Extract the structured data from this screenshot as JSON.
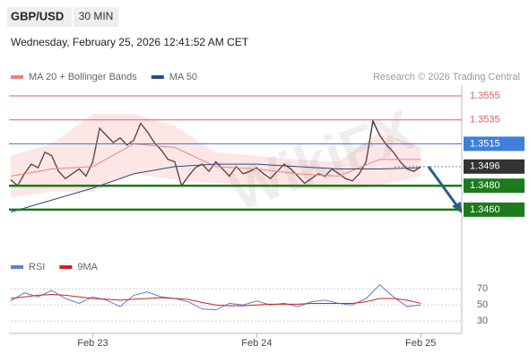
{
  "header": {
    "symbol": "GBP/USD",
    "timeframe": "30 MIN",
    "datetime": "Wednesday, February 25, 2026 12:41:52 AM CET",
    "credit": "Research © 2026 Trading Central",
    "watermark": "WikiFX"
  },
  "chart_data": [
    {
      "type": "line",
      "xlim": [
        -12,
        54
      ],
      "ylim": [
        1.3424,
        1.3564
      ],
      "xticks": [
        {
          "value": 0,
          "label": "Feb 23"
        },
        {
          "value": 24,
          "label": "Feb 24"
        },
        {
          "value": 48,
          "label": "Feb 25"
        }
      ],
      "x": [
        -12,
        -11,
        -10,
        -9,
        -8,
        -7,
        -6,
        -5,
        -4,
        -3,
        -2,
        -1,
        0,
        1,
        2,
        3,
        4,
        5,
        6,
        7,
        8,
        9,
        10,
        11,
        12,
        13,
        14,
        15,
        16,
        17,
        18,
        19,
        20,
        21,
        22,
        23,
        24,
        25,
        26,
        27,
        28,
        29,
        30,
        31,
        32,
        33,
        34,
        35,
        36,
        37,
        38,
        39,
        40,
        41,
        42,
        43,
        44,
        45,
        46,
        47,
        48
      ],
      "series": [
        {
          "color": "#3a3a3a",
          "values": [
            1.3485,
            1.348,
            1.349,
            1.3498,
            1.3495,
            1.3508,
            1.3505,
            1.3492,
            1.3486,
            1.349,
            1.3494,
            1.3488,
            1.35,
            1.3528,
            1.3522,
            1.3516,
            1.352,
            1.3514,
            1.3518,
            1.3532,
            1.3525,
            1.3516,
            1.351,
            1.3502,
            1.35,
            1.348,
            1.3488,
            1.3495,
            1.3498,
            1.3492,
            1.35,
            1.3494,
            1.3488,
            1.3496,
            1.349,
            1.3492,
            1.3495,
            1.349,
            1.3486,
            1.3492,
            1.3498,
            1.3494,
            1.3488,
            1.3482,
            1.3486,
            1.349,
            1.3488,
            1.3494,
            1.349,
            1.3486,
            1.3484,
            1.349,
            1.35,
            1.3534,
            1.3522,
            1.3514,
            1.3508,
            1.35,
            1.3494,
            1.3492,
            1.3496
          ]
        },
        {
          "name": "MA 20 + Bollinger Bands",
          "color": "#f08080",
          "x": [
            -12,
            -6,
            0,
            6,
            12,
            18,
            24,
            30,
            36,
            42,
            48
          ],
          "values": [
            1.3488,
            1.3494,
            1.3496,
            1.3515,
            1.3512,
            1.3496,
            1.3494,
            1.349,
            1.3488,
            1.3502,
            1.3502
          ],
          "band_upper": [
            1.3505,
            1.3515,
            1.354,
            1.354,
            1.353,
            1.3508,
            1.3505,
            1.3502,
            1.35,
            1.3525,
            1.3512
          ],
          "band_lower": [
            1.347,
            1.3475,
            1.3475,
            1.349,
            1.3485,
            1.3482,
            1.348,
            1.3478,
            1.3476,
            1.348,
            1.3488
          ]
        },
        {
          "name": "MA 50",
          "color": "#2c4a7c",
          "x": [
            -12,
            -6,
            0,
            6,
            12,
            18,
            24,
            30,
            36,
            42,
            48
          ],
          "values": [
            1.3458,
            1.3468,
            1.3478,
            1.349,
            1.3496,
            1.3498,
            1.3498,
            1.3496,
            1.3494,
            1.3494,
            1.3495
          ]
        }
      ],
      "levels": [
        {
          "value": 1.3555,
          "label": "1.3555",
          "color": "#e06060",
          "style": "text"
        },
        {
          "value": 1.3535,
          "label": "1.3535",
          "color": "#e06060",
          "style": "text"
        },
        {
          "value": 1.3515,
          "label": "1.3515",
          "color": "#3d7fd9",
          "style": "box"
        },
        {
          "value": 1.3496,
          "label": "1.3496",
          "color": "#333333",
          "style": "box"
        },
        {
          "value": 1.348,
          "label": "1.3480",
          "color": "#1d7a1d",
          "style": "box"
        },
        {
          "value": 1.346,
          "label": "1.3460",
          "color": "#1d7a1d",
          "style": "box"
        }
      ]
    },
    {
      "type": "line",
      "xlim": [
        -12,
        54
      ],
      "ylim": [
        17,
        78
      ],
      "yticks": [
        30,
        50,
        70
      ],
      "x": [
        -12,
        -10,
        -8,
        -6,
        -4,
        -2,
        0,
        2,
        4,
        6,
        8,
        10,
        12,
        14,
        16,
        18,
        20,
        22,
        24,
        26,
        28,
        30,
        32,
        34,
        36,
        38,
        40,
        42,
        44,
        46,
        48
      ],
      "series": [
        {
          "name": "RSI",
          "color": "#5a7fd6",
          "values": [
            55,
            65,
            60,
            68,
            58,
            52,
            60,
            56,
            48,
            62,
            66,
            60,
            58,
            54,
            45,
            44,
            52,
            50,
            55,
            50,
            52,
            48,
            54,
            56,
            52,
            50,
            58,
            75,
            60,
            48,
            50
          ]
        },
        {
          "name": "9MA",
          "color": "#d02020",
          "values": [
            58,
            60,
            62,
            63,
            62,
            60,
            58,
            57,
            56,
            57,
            58,
            59,
            58,
            57,
            53,
            50,
            49,
            49,
            50,
            51,
            51,
            51,
            52,
            52,
            52,
            52,
            54,
            58,
            58,
            56,
            52
          ]
        }
      ]
    }
  ]
}
